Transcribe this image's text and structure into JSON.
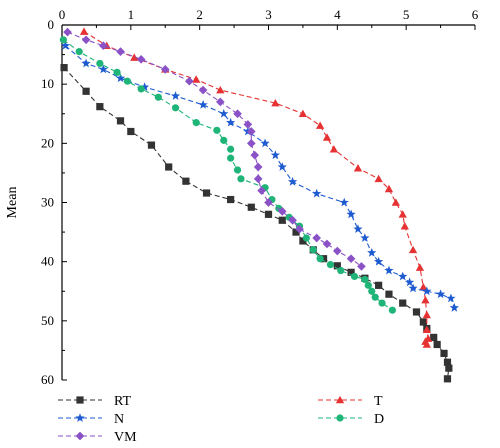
{
  "chart_data": {
    "type": "line",
    "xlabel": "",
    "ylabel": "Mean",
    "xlim": [
      0,
      6.0
    ],
    "ylim": [
      60,
      0
    ],
    "x_ticks": [
      0,
      1,
      2,
      3,
      4,
      5,
      6
    ],
    "y_ticks": [
      0,
      10,
      20,
      30,
      40,
      50,
      60
    ],
    "x_axis_position": "top",
    "y_inverted": true,
    "grid": false,
    "legend": {
      "placement": "bottom",
      "columns": 2
    },
    "series": [
      {
        "name": "RT",
        "color": "#333333",
        "marker": "square",
        "points": [
          [
            0.03,
            7.2
          ],
          [
            0.35,
            11.2
          ],
          [
            0.55,
            13.8
          ],
          [
            0.85,
            16.2
          ],
          [
            1.0,
            18.0
          ],
          [
            1.3,
            20.3
          ],
          [
            1.55,
            24.0
          ],
          [
            1.8,
            26.4
          ],
          [
            2.1,
            28.4
          ],
          [
            2.45,
            29.5
          ],
          [
            2.75,
            30.8
          ],
          [
            3.0,
            32.0
          ],
          [
            3.2,
            33.0
          ],
          [
            3.4,
            35.0
          ],
          [
            3.5,
            36.5
          ],
          [
            3.65,
            38.0
          ],
          [
            3.8,
            39.5
          ],
          [
            4.0,
            40.7
          ],
          [
            4.2,
            41.8
          ],
          [
            4.4,
            42.8
          ],
          [
            4.6,
            44.0
          ],
          [
            4.75,
            45.5
          ],
          [
            4.95,
            47.0
          ],
          [
            5.15,
            48.5
          ],
          [
            5.25,
            50.2
          ],
          [
            5.3,
            51.3
          ],
          [
            5.4,
            52.8
          ],
          [
            5.45,
            54.0
          ],
          [
            5.55,
            55.5
          ],
          [
            5.6,
            57.0
          ],
          [
            5.62,
            58.0
          ],
          [
            5.6,
            59.8
          ]
        ]
      },
      {
        "name": "T",
        "color": "#e63232",
        "marker": "triangle",
        "points": [
          [
            0.32,
            1.1
          ],
          [
            0.65,
            3.5
          ],
          [
            1.05,
            5.5
          ],
          [
            1.5,
            7.5
          ],
          [
            1.95,
            9.2
          ],
          [
            2.3,
            11.0
          ],
          [
            3.1,
            13.2
          ],
          [
            3.5,
            15.0
          ],
          [
            3.75,
            17.0
          ],
          [
            3.85,
            19.0
          ],
          [
            3.95,
            21.0
          ],
          [
            4.3,
            24.2
          ],
          [
            4.6,
            26.0
          ],
          [
            4.75,
            27.7
          ],
          [
            4.85,
            30.0
          ],
          [
            4.95,
            32.0
          ],
          [
            4.98,
            34.0
          ],
          [
            5.1,
            38.0
          ],
          [
            5.2,
            41.0
          ],
          [
            5.25,
            44.3
          ],
          [
            5.28,
            46.5
          ],
          [
            5.3,
            49.0
          ],
          [
            5.3,
            51.5
          ],
          [
            5.32,
            53.0
          ],
          [
            5.28,
            53.5
          ],
          [
            5.3,
            54.0
          ]
        ]
      },
      {
        "name": "N",
        "color": "#1f5bd0",
        "marker": "star",
        "points": [
          [
            0.05,
            3.5
          ],
          [
            0.35,
            6.5
          ],
          [
            0.6,
            7.5
          ],
          [
            0.85,
            9.0
          ],
          [
            1.2,
            10.5
          ],
          [
            1.65,
            12.0
          ],
          [
            2.05,
            13.5
          ],
          [
            2.35,
            15.0
          ],
          [
            2.45,
            16.5
          ],
          [
            2.7,
            18.0
          ],
          [
            2.95,
            20.0
          ],
          [
            3.1,
            22.0
          ],
          [
            3.2,
            24.0
          ],
          [
            3.35,
            26.5
          ],
          [
            3.7,
            28.5
          ],
          [
            4.1,
            30.0
          ],
          [
            4.2,
            32.0
          ],
          [
            4.3,
            34.5
          ],
          [
            4.4,
            36.0
          ],
          [
            4.5,
            38.5
          ],
          [
            4.6,
            40.0
          ],
          [
            4.75,
            41.5
          ],
          [
            4.95,
            42.5
          ],
          [
            5.05,
            43.5
          ],
          [
            5.1,
            44.5
          ],
          [
            5.3,
            45.0
          ],
          [
            5.5,
            45.5
          ],
          [
            5.65,
            46.2
          ],
          [
            5.7,
            47.8
          ]
        ]
      },
      {
        "name": "D",
        "color": "#1fb478",
        "marker": "circle",
        "points": [
          [
            0.02,
            2.5
          ],
          [
            0.25,
            4.5
          ],
          [
            0.55,
            6.5
          ],
          [
            0.8,
            8.0
          ],
          [
            0.95,
            9.5
          ],
          [
            1.15,
            10.8
          ],
          [
            1.4,
            12.2
          ],
          [
            1.65,
            14.0
          ],
          [
            1.95,
            16.5
          ],
          [
            2.25,
            17.8
          ],
          [
            2.35,
            19.5
          ],
          [
            2.45,
            21.0
          ],
          [
            2.45,
            22.5
          ],
          [
            2.55,
            24.5
          ],
          [
            2.6,
            26.0
          ],
          [
            2.95,
            27.5
          ],
          [
            3.05,
            29.5
          ],
          [
            3.15,
            31.0
          ],
          [
            3.3,
            32.5
          ],
          [
            3.45,
            34.0
          ],
          [
            3.55,
            36.0
          ],
          [
            3.65,
            38.0
          ],
          [
            3.75,
            39.5
          ],
          [
            3.9,
            40.5
          ],
          [
            4.05,
            41.5
          ],
          [
            4.25,
            42.5
          ],
          [
            4.4,
            43.0
          ],
          [
            4.45,
            44.0
          ],
          [
            4.5,
            45.0
          ],
          [
            4.55,
            46.0
          ],
          [
            4.65,
            47.0
          ],
          [
            4.8,
            48.2
          ]
        ]
      },
      {
        "name": "VM",
        "color": "#8a52c6",
        "marker": "diamond",
        "points": [
          [
            0.08,
            1.2
          ],
          [
            0.35,
            2.5
          ],
          [
            0.6,
            3.5
          ],
          [
            0.85,
            4.5
          ],
          [
            1.15,
            5.8
          ],
          [
            1.5,
            7.5
          ],
          [
            1.85,
            9.5
          ],
          [
            2.05,
            11.0
          ],
          [
            2.3,
            13.0
          ],
          [
            2.55,
            15.0
          ],
          [
            2.7,
            16.8
          ],
          [
            2.75,
            18.0
          ],
          [
            2.75,
            20.0
          ],
          [
            2.8,
            22.0
          ],
          [
            2.85,
            24.0
          ],
          [
            2.85,
            26.0
          ],
          [
            2.9,
            28.0
          ],
          [
            3.0,
            30.0
          ],
          [
            3.2,
            31.5
          ],
          [
            3.35,
            33.0
          ],
          [
            3.45,
            34.5
          ],
          [
            3.7,
            36.0
          ],
          [
            3.85,
            37.0
          ],
          [
            4.0,
            38.2
          ],
          [
            4.2,
            39.5
          ],
          [
            4.35,
            40.8
          ]
        ]
      }
    ]
  }
}
